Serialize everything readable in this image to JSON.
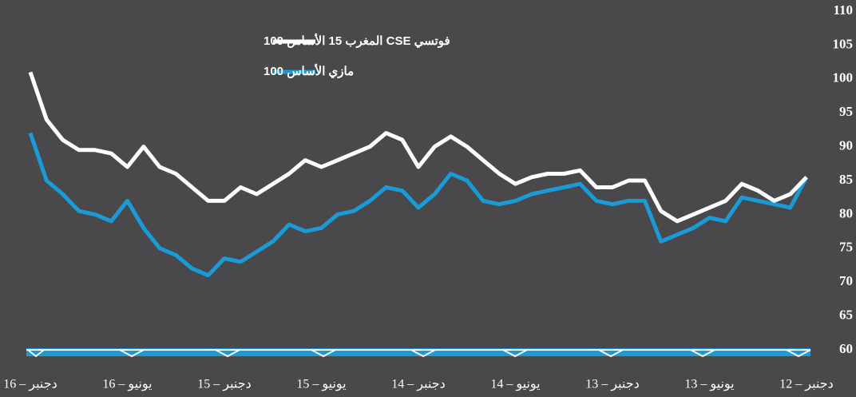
{
  "chart_data": {
    "type": "line",
    "x_direction": "right-to-left",
    "grid": false,
    "legend": "top-left",
    "categories": [
      "دجنبر – 12",
      null,
      null,
      null,
      null,
      null,
      "يونيو – 13",
      null,
      null,
      null,
      null,
      null,
      "دجنبر – 13",
      null,
      null,
      null,
      null,
      null,
      "يونيو – 14",
      null,
      null,
      null,
      null,
      null,
      "دجنبر – 14",
      null,
      null,
      null,
      null,
      null,
      "يونيو – 15",
      null,
      null,
      null,
      null,
      null,
      "دجنبر – 15",
      null,
      null,
      null,
      null,
      null,
      "يونيو – 16",
      null,
      null,
      null,
      null,
      null,
      "دجنبر – 16"
    ],
    "ylim": [
      60,
      110
    ],
    "yticks": [
      60,
      65,
      70,
      75,
      80,
      85,
      90,
      95,
      100,
      105,
      110
    ],
    "series": [
      {
        "name": "فوتسي CSE المغرب 15 الأساس 100",
        "color": "#ffffff",
        "values": [
          85.5,
          83,
          82,
          83.5,
          84.5,
          82,
          81,
          80,
          79,
          80.5,
          85,
          85,
          84,
          84,
          86.5,
          86,
          86,
          85.5,
          84.5,
          86,
          88,
          90,
          91.5,
          90,
          87,
          91,
          92,
          90,
          89,
          88,
          87,
          88,
          86,
          84.5,
          83,
          84,
          82,
          82,
          84,
          86,
          87,
          90,
          87,
          89,
          89.5,
          89.5,
          91,
          94,
          101
        ]
      },
      {
        "name": "مازي الأساس 100",
        "color": "#1a9ad6",
        "values": [
          85.5,
          81,
          81.5,
          82,
          82.5,
          79,
          79.5,
          78,
          77,
          76,
          82,
          82,
          81.5,
          82,
          84.5,
          84,
          83.5,
          83,
          82,
          81.5,
          82,
          85,
          86,
          83,
          81,
          83.5,
          84,
          82,
          80.5,
          80,
          78,
          77.5,
          78.5,
          76,
          74.5,
          73,
          73.5,
          71,
          72,
          74,
          75,
          78,
          82,
          79,
          80,
          80.5,
          83,
          85,
          92
        ]
      }
    ]
  }
}
